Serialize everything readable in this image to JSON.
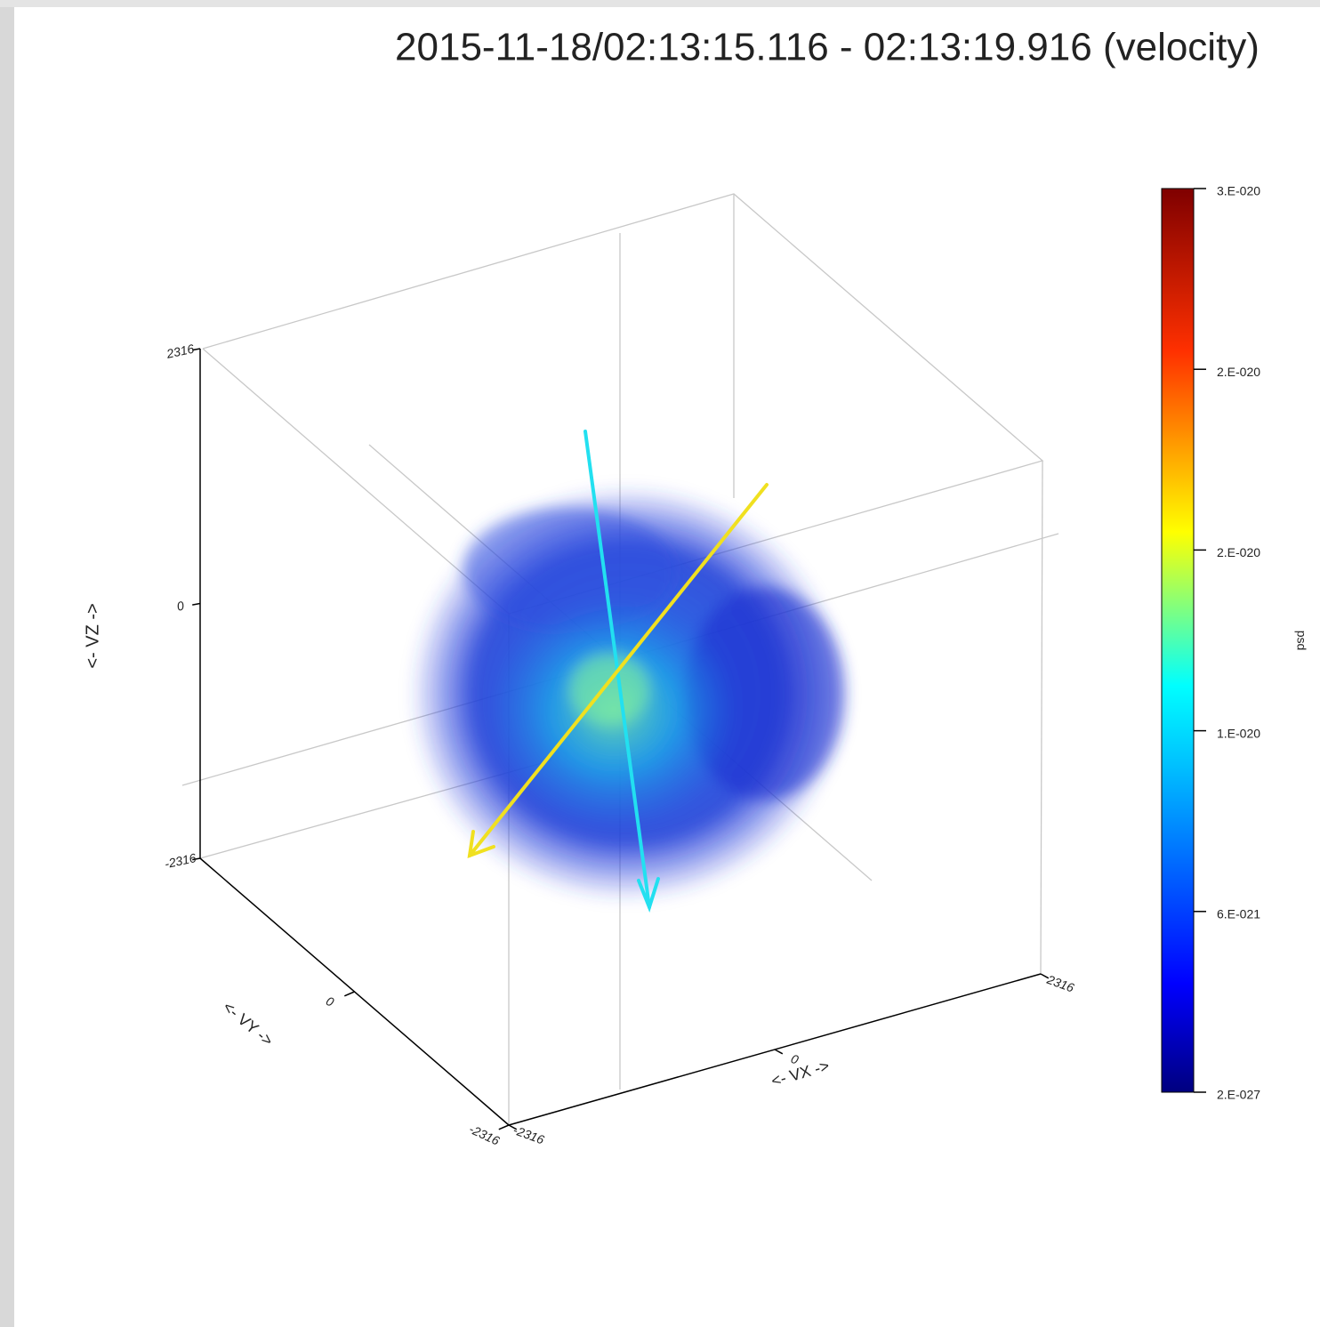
{
  "chart_data": {
    "type": "volume",
    "title": "2015-11-18/02:13:15.116 - 02:13:19.916  (velocity)",
    "x_label": "<- VX ->",
    "y_label": "<- VY ->",
    "z_label": "<- VZ ->",
    "xlim": [
      -2316,
      2316
    ],
    "xticks": [
      -2316,
      0,
      2316
    ],
    "ylim": [
      2316,
      -2316
    ],
    "yticks": [
      0,
      -2316
    ],
    "zlim": [
      -2316,
      2316
    ],
    "zticks": [
      -2316,
      0,
      2316
    ],
    "colorbar": {
      "label": "psd",
      "lim": [
        2e-27,
        3e-20
      ],
      "ticks": [
        {
          "value": 3e-20,
          "label": "3.E-020"
        },
        {
          "value": 2.4e-20,
          "label": "2.E-020"
        },
        {
          "value": 1.8e-20,
          "label": "2.E-020"
        },
        {
          "value": 1.2e-20,
          "label": "1.E-020"
        },
        {
          "value": 6e-21,
          "label": "6.E-021"
        },
        {
          "value": 2e-27,
          "label": "2.E-027"
        }
      ]
    }
  }
}
